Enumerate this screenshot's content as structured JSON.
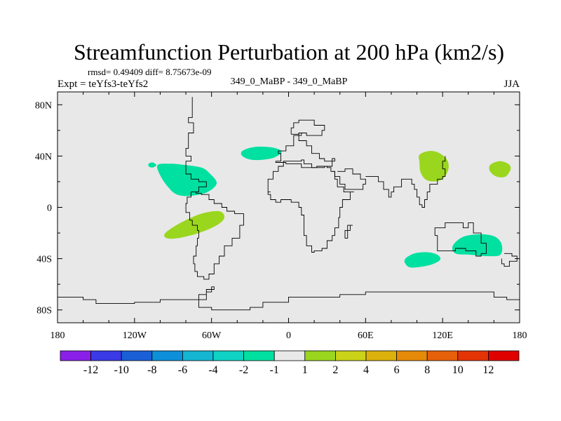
{
  "chart_data": {
    "type": "heatmap",
    "title": "Streamfunction Perturbation at 200 hPa (km2/s)",
    "stats_line": "rmsd= 0.49409 diff= 8.75673e-09",
    "left_label": "Expt = teYfs3-teYfs2",
    "center_label": "349_0_MaBP - 349_0_MaBP",
    "right_label": "JJA",
    "x_range": [
      -180,
      180
    ],
    "y_range": [
      -90,
      90
    ],
    "x_ticks": [
      {
        "value": -180,
        "label": "180"
      },
      {
        "value": -120,
        "label": "120W"
      },
      {
        "value": -60,
        "label": "60W"
      },
      {
        "value": 0,
        "label": "0"
      },
      {
        "value": 60,
        "label": "60E"
      },
      {
        "value": 120,
        "label": "120E"
      },
      {
        "value": 180,
        "label": "180"
      }
    ],
    "y_ticks": [
      {
        "value": 80,
        "label": "80N"
      },
      {
        "value": 40,
        "label": "40N"
      },
      {
        "value": 0,
        "label": "0"
      },
      {
        "value": -40,
        "label": "40S"
      },
      {
        "value": -80,
        "label": "80S"
      }
    ],
    "colorbar": {
      "colors": [
        "#8a20e8",
        "#3a3ae6",
        "#1a5fd6",
        "#0e90d8",
        "#14b6d2",
        "#10d2c4",
        "#00e0a0",
        "#e8e8e8",
        "#9ad61e",
        "#cad318",
        "#dcb10c",
        "#e48a08",
        "#e6600a",
        "#e43406",
        "#e00000"
      ],
      "labels": [
        "-12",
        "-10",
        "-8",
        "-6",
        "-4",
        "-2",
        "-1",
        "1",
        "2",
        "4",
        "6",
        "8",
        "10",
        "12"
      ]
    },
    "anomalies": [
      {
        "sign": "negative",
        "color": "#00e0a0",
        "outline": [
          [
            -102,
            33
          ],
          [
            -92,
            34
          ],
          [
            -80,
            33
          ],
          [
            -68,
            31
          ],
          [
            -62,
            27
          ],
          [
            -56,
            19
          ],
          [
            -63,
            12
          ],
          [
            -76,
            9
          ],
          [
            -87,
            10
          ],
          [
            -94,
            16
          ],
          [
            -100,
            25
          ]
        ]
      },
      {
        "sign": "negative",
        "color": "#00e0a0",
        "outline": [
          [
            -109,
            34
          ],
          [
            -106,
            35
          ],
          [
            -103,
            33
          ],
          [
            -106,
            31
          ],
          [
            -109,
            32
          ]
        ]
      },
      {
        "sign": "negative",
        "color": "#00e0a0",
        "outline": [
          [
            -36,
            44
          ],
          [
            -27,
            47
          ],
          [
            -15,
            47
          ],
          [
            -7,
            45
          ],
          [
            -6,
            42
          ],
          [
            -14,
            38
          ],
          [
            -28,
            37
          ],
          [
            -36,
            40
          ]
        ]
      },
      {
        "sign": "negative",
        "color": "#00e0a0",
        "outline": [
          [
            91,
            -40
          ],
          [
            98,
            -36
          ],
          [
            108,
            -35
          ],
          [
            116,
            -37
          ],
          [
            118,
            -41
          ],
          [
            110,
            -45
          ],
          [
            96,
            -47
          ],
          [
            91,
            -44
          ]
        ]
      },
      {
        "sign": "negative",
        "color": "#00e0a0",
        "outline": [
          [
            128,
            -30
          ],
          [
            136,
            -23
          ],
          [
            150,
            -21
          ],
          [
            161,
            -23
          ],
          [
            166,
            -29
          ],
          [
            165,
            -37
          ],
          [
            155,
            -38
          ],
          [
            142,
            -37
          ],
          [
            130,
            -36
          ]
        ]
      },
      {
        "sign": "positive",
        "color": "#9ad61e",
        "outline": [
          [
            -96,
            -20
          ],
          [
            -84,
            -12
          ],
          [
            -68,
            -5
          ],
          [
            -54,
            -3
          ],
          [
            -50,
            -8
          ],
          [
            -56,
            -14
          ],
          [
            -70,
            -20
          ],
          [
            -86,
            -24
          ],
          [
            -95,
            -24
          ]
        ]
      },
      {
        "sign": "positive",
        "color": "#9ad61e",
        "outline": [
          [
            102,
            41
          ],
          [
            110,
            44
          ],
          [
            118,
            42
          ],
          [
            124,
            36
          ],
          [
            124,
            28
          ],
          [
            118,
            21
          ],
          [
            108,
            21
          ],
          [
            103,
            27
          ],
          [
            102,
            35
          ]
        ]
      },
      {
        "sign": "positive",
        "color": "#9ad61e",
        "outline": [
          [
            157,
            33
          ],
          [
            164,
            36
          ],
          [
            171,
            34
          ],
          [
            173,
            30
          ],
          [
            169,
            24
          ],
          [
            162,
            24
          ],
          [
            157,
            28
          ]
        ]
      }
    ],
    "coastlines": [
      [
        [
          -75,
          86
        ],
        [
          -75,
          70
        ],
        [
          -78,
          66
        ],
        [
          -74,
          58
        ],
        [
          -78,
          52
        ],
        [
          -78,
          46
        ],
        [
          -80,
          40
        ],
        [
          -76,
          36
        ],
        [
          -80,
          32
        ],
        [
          -80,
          26
        ],
        [
          -76,
          22
        ],
        [
          -70,
          20
        ],
        [
          -64,
          16
        ],
        [
          -70,
          12
        ],
        [
          -76,
          8
        ],
        [
          -79,
          3
        ],
        [
          -80,
          -4
        ],
        [
          -77,
          -10
        ],
        [
          -75,
          -14
        ],
        [
          -71,
          -18
        ],
        [
          -70,
          -24
        ],
        [
          -71,
          -30
        ],
        [
          -72,
          -38
        ],
        [
          -74,
          -44
        ],
        [
          -73,
          -50
        ],
        [
          -71,
          -54
        ],
        [
          -66,
          -56
        ],
        [
          -62,
          -52
        ],
        [
          -58,
          -44
        ],
        [
          -54,
          -38
        ],
        [
          -50,
          -30
        ],
        [
          -44,
          -24
        ],
        [
          -38,
          -14
        ],
        [
          -35,
          -8
        ],
        [
          -35,
          -5
        ],
        [
          -42,
          -3
        ],
        [
          -48,
          0
        ],
        [
          -52,
          3
        ],
        [
          -58,
          6
        ],
        [
          -62,
          10
        ],
        [
          -68,
          11
        ],
        [
          -72,
          12
        ]
      ],
      [
        [
          2,
          57
        ],
        [
          8,
          58
        ],
        [
          14,
          56
        ],
        [
          24,
          56
        ],
        [
          26,
          60
        ],
        [
          28,
          64
        ],
        [
          20,
          68
        ],
        [
          8,
          66
        ],
        [
          4,
          62
        ],
        [
          2,
          57
        ]
      ],
      [
        [
          -10,
          36
        ],
        [
          -6,
          36
        ],
        [
          -6,
          42
        ],
        [
          -8,
          44
        ],
        [
          -2,
          48
        ],
        [
          4,
          50
        ],
        [
          4,
          56
        ],
        [
          10,
          58
        ],
        [
          8,
          52
        ],
        [
          14,
          48
        ],
        [
          18,
          42
        ],
        [
          24,
          38
        ],
        [
          28,
          36
        ],
        [
          34,
          38
        ],
        [
          36,
          36
        ],
        [
          34,
          32
        ],
        [
          28,
          31
        ],
        [
          20,
          31
        ],
        [
          10,
          34
        ],
        [
          -2,
          35
        ],
        [
          -10,
          36
        ]
      ],
      [
        [
          -14,
          12
        ],
        [
          -16,
          16
        ],
        [
          -16,
          22
        ],
        [
          -12,
          28
        ],
        [
          -8,
          32
        ],
        [
          -4,
          36
        ],
        [
          10,
          37
        ],
        [
          12,
          34
        ],
        [
          18,
          31
        ],
        [
          22,
          32
        ],
        [
          30,
          31
        ],
        [
          33,
          28
        ],
        [
          36,
          22
        ],
        [
          38,
          16
        ],
        [
          43,
          12
        ],
        [
          51,
          12
        ],
        [
          48,
          6
        ],
        [
          42,
          0
        ],
        [
          40,
          -8
        ],
        [
          39,
          -16
        ],
        [
          36,
          -22
        ],
        [
          34,
          -26
        ],
        [
          30,
          -32
        ],
        [
          26,
          -34
        ],
        [
          20,
          -35
        ],
        [
          18,
          -30
        ],
        [
          14,
          -22
        ],
        [
          12,
          -14
        ],
        [
          12,
          -6
        ],
        [
          10,
          0
        ],
        [
          8,
          4
        ],
        [
          2,
          6
        ],
        [
          -6,
          4
        ],
        [
          -10,
          6
        ],
        [
          -14,
          10
        ],
        [
          -16,
          14
        ]
      ],
      [
        [
          34,
          28
        ],
        [
          36,
          24
        ],
        [
          40,
          18
        ],
        [
          44,
          14
        ],
        [
          50,
          14
        ],
        [
          58,
          18
        ],
        [
          60,
          22
        ],
        [
          56,
          26
        ],
        [
          50,
          30
        ],
        [
          48,
          30
        ],
        [
          44,
          28
        ],
        [
          38,
          28
        ]
      ],
      [
        [
          60,
          24
        ],
        [
          66,
          24
        ],
        [
          70,
          20
        ],
        [
          74,
          14
        ],
        [
          78,
          8
        ],
        [
          80,
          12
        ],
        [
          82,
          16
        ],
        [
          88,
          22
        ],
        [
          92,
          22
        ],
        [
          96,
          18
        ],
        [
          98,
          14
        ],
        [
          100,
          8
        ],
        [
          102,
          2
        ],
        [
          104,
          0
        ],
        [
          106,
          6
        ],
        [
          108,
          12
        ],
        [
          110,
          18
        ],
        [
          116,
          22
        ],
        [
          120,
          24
        ],
        [
          122,
          30
        ],
        [
          120,
          36
        ],
        [
          122,
          40
        ]
      ],
      [
        [
          50,
          -14
        ],
        [
          48,
          -18
        ],
        [
          46,
          -24
        ],
        [
          44,
          -24
        ],
        [
          44,
          -18
        ],
        [
          46,
          -14
        ],
        [
          50,
          -14
        ]
      ],
      [
        [
          114,
          -22
        ],
        [
          116,
          -34
        ],
        [
          124,
          -34
        ],
        [
          130,
          -32
        ],
        [
          138,
          -34
        ],
        [
          146,
          -38
        ],
        [
          150,
          -36
        ],
        [
          154,
          -28
        ],
        [
          150,
          -20
        ],
        [
          144,
          -12
        ],
        [
          140,
          -16
        ],
        [
          136,
          -12
        ],
        [
          130,
          -12
        ],
        [
          122,
          -16
        ],
        [
          114,
          -22
        ]
      ],
      [
        [
          168,
          -36
        ],
        [
          174,
          -38
        ],
        [
          178,
          -42
        ],
        [
          172,
          -46
        ],
        [
          168,
          -44
        ],
        [
          166,
          -40
        ]
      ],
      [
        [
          -180,
          -70
        ],
        [
          -160,
          -72
        ],
        [
          -150,
          -75
        ],
        [
          -120,
          -74
        ],
        [
          -100,
          -72
        ],
        [
          -80,
          -72
        ],
        [
          -70,
          -68
        ],
        [
          -64,
          -64
        ],
        [
          -58,
          -62
        ],
        [
          -60,
          -66
        ],
        [
          -64,
          -72
        ],
        [
          -70,
          -78
        ],
        [
          -60,
          -80
        ],
        [
          -30,
          -78
        ],
        [
          -20,
          -74
        ],
        [
          0,
          -70
        ],
        [
          20,
          -70
        ],
        [
          40,
          -68
        ],
        [
          60,
          -66
        ],
        [
          80,
          -66
        ],
        [
          100,
          -66
        ],
        [
          120,
          -66
        ],
        [
          140,
          -66
        ],
        [
          160,
          -70
        ],
        [
          170,
          -72
        ],
        [
          180,
          -72
        ]
      ]
    ]
  }
}
